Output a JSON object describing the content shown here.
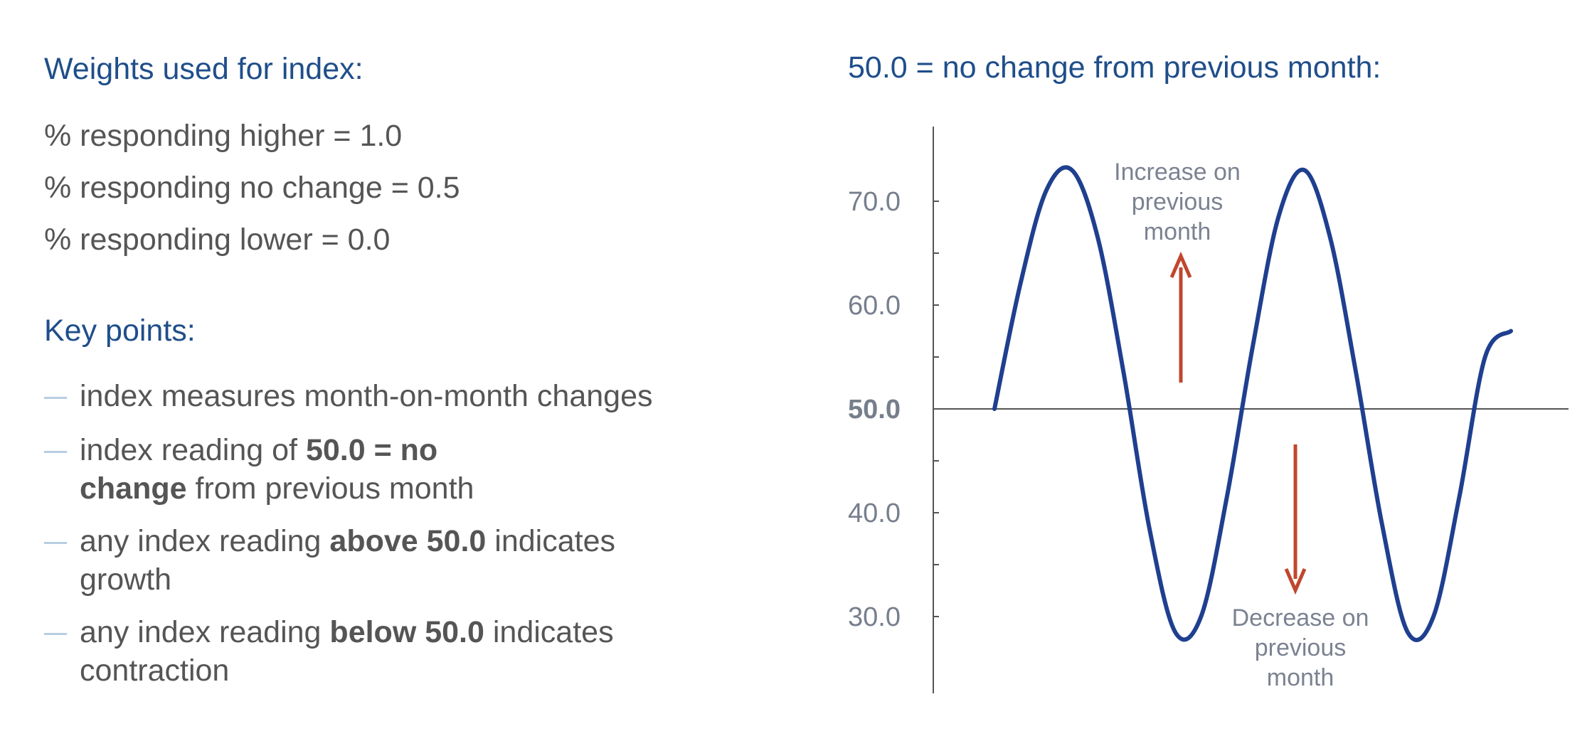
{
  "weights": {
    "heading": "Weights used for index:",
    "lines": [
      "% responding higher = 1.0",
      "% responding no change = 0.5",
      "% responding lower = 0.0"
    ]
  },
  "key_points": {
    "heading": "Key points:",
    "items": [
      {
        "segments": [
          {
            "text": "index measures month-on-month changes",
            "bold": false
          }
        ]
      },
      {
        "segments": [
          {
            "text": "index reading of ",
            "bold": false
          },
          {
            "text": "50.0 = no change",
            "bold": true
          },
          {
            "text": " from previous month",
            "bold": false
          }
        ]
      },
      {
        "segments": [
          {
            "text": "any index reading ",
            "bold": false
          },
          {
            "text": "above 50.0",
            "bold": true
          },
          {
            "text": " indicates growth",
            "bold": false
          }
        ]
      },
      {
        "segments": [
          {
            "text": "any index reading ",
            "bold": false
          },
          {
            "text": "below 50.0",
            "bold": true
          },
          {
            "text": " indicates contraction",
            "bold": false
          }
        ]
      }
    ]
  },
  "chart_data": {
    "type": "line",
    "title": "50.0 = no change from previous month:",
    "xlabel": "",
    "ylabel": "",
    "ylim": [
      22.5,
      77.5
    ],
    "yticks": [
      30.0,
      40.0,
      50.0,
      60.0,
      70.0
    ],
    "ytick_labels": [
      "30.0",
      "40.0",
      "50.0",
      "60.0",
      "70.0"
    ],
    "minor_yticks": [
      35.0,
      45.0,
      55.0,
      65.0
    ],
    "reference_line": {
      "y": 50.0,
      "label": "50.0",
      "bold": true
    },
    "series": [
      {
        "line_color": "#1f3f8f",
        "x": [
          0.0,
          0.05,
          0.1,
          0.15,
          0.2,
          0.25,
          0.3,
          0.35,
          0.4,
          0.45,
          0.5,
          0.55,
          0.6,
          0.65,
          0.7,
          0.75,
          0.8,
          0.85,
          0.9,
          0.95,
          1.0
        ],
        "values": [
          50.0,
          62.0,
          71.0,
          73.0,
          66.5,
          53.5,
          38.5,
          28.5,
          30.0,
          41.5,
          56.0,
          68.5,
          73.0,
          66.5,
          53.5,
          39.0,
          28.5,
          30.0,
          41.5,
          55.0,
          57.5
        ]
      }
    ],
    "annotations": [
      {
        "text": [
          "Increase on",
          "previous",
          "month"
        ],
        "arrow": "up",
        "color": "#c0472d"
      },
      {
        "text": [
          "Decrease on",
          "previous",
          "month"
        ],
        "arrow": "down",
        "color": "#c0472d"
      }
    ],
    "grid": false,
    "legend": "none"
  },
  "colors": {
    "heading": "#1f4e8a",
    "body_text": "#555555",
    "line": "#1f3f8f",
    "arrow": "#c0472d",
    "axis": "#555555",
    "tick_label": "#777e8c",
    "bullet_dash": "#b9cde3"
  }
}
